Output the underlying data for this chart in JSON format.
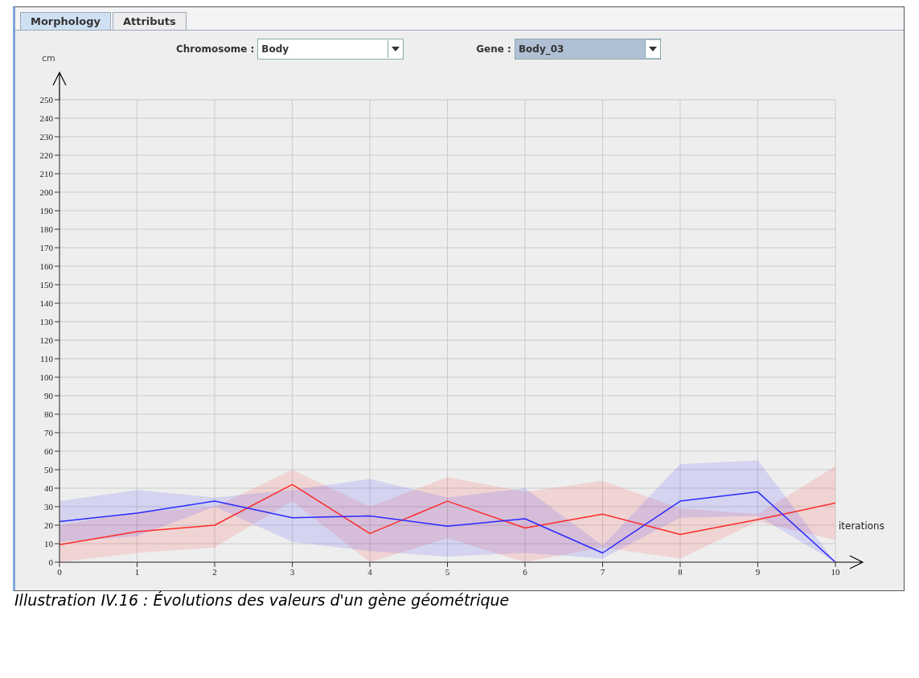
{
  "chart_data": {
    "type": "line",
    "xlabel": "iterations",
    "ylabel": "cm",
    "annotations": [
      "Morphology",
      "Attributs",
      "Chromosome :",
      "Body",
      "Gene :",
      "Body_03",
      "Illustration IV.16 : Évolutions des valeurs d'un gène géométrique"
    ],
    "x": [
      0,
      1,
      2,
      3,
      4,
      5,
      6,
      7,
      8,
      9,
      10
    ],
    "series": [
      {
        "color": "#ff2a2a",
        "values": [
          9.5,
          16.5,
          20,
          42,
          15.5,
          33,
          18.5,
          26,
          15,
          23,
          32
        ],
        "lower": [
          0,
          5,
          8,
          33,
          0,
          13,
          0,
          8,
          2,
          22,
          12
        ],
        "upper": [
          20,
          27,
          30,
          50,
          30,
          46,
          38,
          44,
          29,
          26,
          52
        ]
      },
      {
        "color": "#2a2aff",
        "values": [
          22,
          26.5,
          33,
          24,
          25,
          19.5,
          23.5,
          5,
          33,
          38,
          0
        ],
        "lower": [
          11,
          14,
          30,
          11,
          6,
          3,
          5,
          2,
          24,
          25,
          0
        ],
        "upper": [
          33,
          39,
          35,
          39,
          45,
          35,
          40,
          9,
          53,
          55,
          0
        ]
      }
    ],
    "xlim": [
      0,
      10
    ],
    "xticks": [
      0,
      1,
      2,
      3,
      4,
      5,
      6,
      7,
      8,
      9,
      10
    ],
    "ylim": [
      0,
      250
    ],
    "yticks": [
      0,
      10,
      20,
      30,
      40,
      50,
      60,
      70,
      80,
      90,
      100,
      110,
      120,
      130,
      140,
      150,
      160,
      170,
      180,
      190,
      200,
      210,
      220,
      230,
      240,
      250
    ],
    "grid": true,
    "marker": "none",
    "line_style": "solid"
  }
}
